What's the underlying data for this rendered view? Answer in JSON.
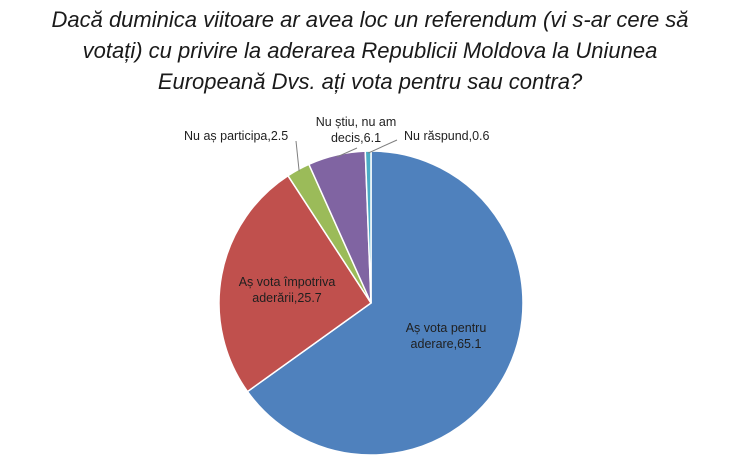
{
  "chart_data": {
    "type": "pie",
    "title_lines": [
      "Dacă duminica viitoare ar avea loc un referendum (vi s-ar cere să",
      "votați) cu privire la aderarea Republicii Moldova la Uniunea",
      "Europeană Dvs. ați vota pentru sau contra?"
    ],
    "slices": [
      {
        "label_lines": [
          "Aș vota pentru",
          "aderare,65.1"
        ],
        "value": 65.1,
        "color": "#4f81bd"
      },
      {
        "label_lines": [
          "Aș vota împotriva",
          "aderării,25.7"
        ],
        "value": 25.7,
        "color": "#c0504d"
      },
      {
        "label_lines": [
          "Nu aș participa,2.5"
        ],
        "value": 2.5,
        "color": "#9bbb59"
      },
      {
        "label_lines": [
          "Nu știu, nu am",
          "decis,6.1"
        ],
        "value": 6.1,
        "color": "#8064a2"
      },
      {
        "label_lines": [
          "Nu răspund,0.6"
        ],
        "value": 0.6,
        "color": "#4bacc6"
      }
    ],
    "legend": "none"
  }
}
